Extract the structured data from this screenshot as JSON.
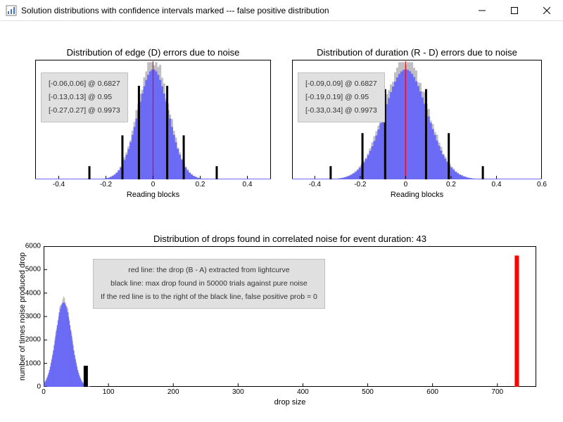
{
  "window": {
    "title": "Solution distributions with confidence intervals marked --- false positive distribution"
  },
  "colors": {
    "fill": "#6b6bf5",
    "fill_shadow": "#c0c0c4",
    "axis": "#000000",
    "redline": "#ff0000",
    "blackline": "#000000",
    "infobox_bg": "#e0e0e0",
    "background": "#ffffff"
  },
  "chart_left": {
    "title": "Distribution of edge (D) errors due to noise",
    "xlabel": "Reading blocks",
    "info_lines": [
      "[-0.06,0.06] @ 0.6827",
      "[-0.13,0.13] @ 0.95",
      "[-0.27,0.27] @ 0.9973"
    ],
    "xlim": [
      -0.5,
      0.5
    ],
    "xticks": [
      -0.4,
      -0.2,
      0,
      0.2,
      0.4
    ],
    "mean": 0,
    "sigma": 0.065,
    "conf_marks": [
      -0.27,
      -0.13,
      -0.06,
      0.06,
      0.13,
      0.27
    ],
    "conf_mark_heights": [
      0.12,
      0.4,
      0.85,
      0.85,
      0.4,
      0.12
    ]
  },
  "chart_right": {
    "title": "Distribution of duration (R - D) errors due to noise",
    "xlabel": "Reading blocks",
    "info_lines": [
      "[-0.09,0.09] @ 0.6827",
      "[-0.19,0.19] @ 0.95",
      "[-0.33,0.34] @ 0.9973"
    ],
    "xlim": [
      -0.5,
      0.6
    ],
    "xticks": [
      -0.4,
      -0.2,
      0,
      0.2,
      0.4,
      0.6
    ],
    "mean": 0,
    "sigma": 0.095,
    "conf_marks": [
      -0.33,
      -0.19,
      -0.09,
      0.09,
      0.19,
      0.34
    ],
    "conf_mark_heights": [
      0.12,
      0.42,
      0.82,
      0.82,
      0.42,
      0.12
    ]
  },
  "chart_bottom": {
    "title": "Distribution of drops found in correlated noise for event duration: 43",
    "xlabel": "drop size",
    "ylabel": "number of times noise produced drop",
    "info_lines": [
      "red line: the drop (B - A) extracted from lightcurve",
      "black line: max drop found in 50000 trials against pure noise",
      "If the red line is to the right of the black line, false positive prob = 0"
    ],
    "xlim": [
      0,
      760
    ],
    "ylim": [
      0,
      6000
    ],
    "xticks": [
      0,
      100,
      200,
      300,
      400,
      500,
      600,
      700
    ],
    "yticks": [
      0,
      1000,
      2000,
      3000,
      4000,
      5000,
      6000
    ],
    "hist_mean": 30,
    "hist_sigma": 12,
    "hist_peak": 3600,
    "black_line_x": 65,
    "black_line_h": 900,
    "red_line_x": 730,
    "red_line_h": 5600
  }
}
